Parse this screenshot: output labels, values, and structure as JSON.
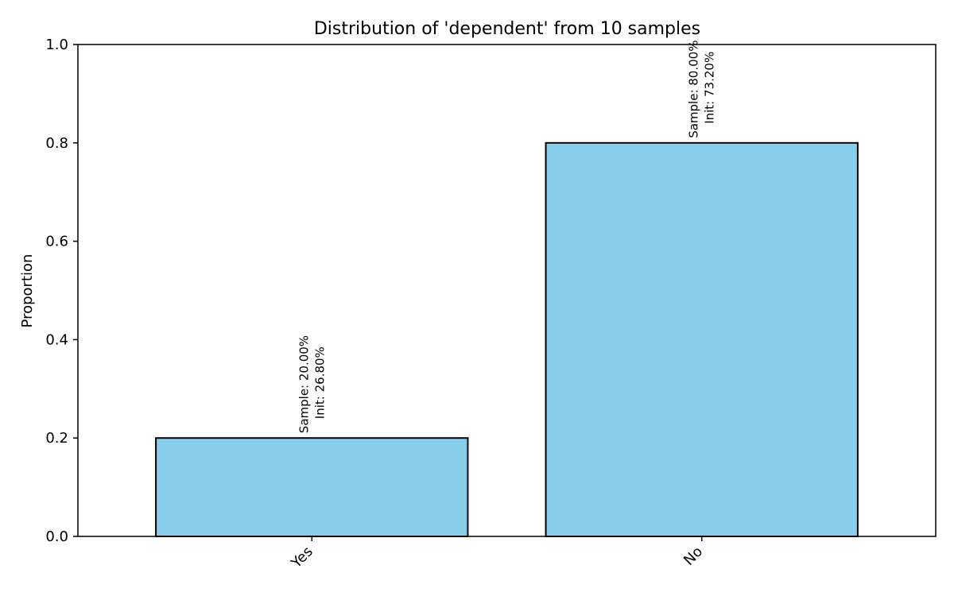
{
  "chart_data": {
    "type": "bar",
    "title": "Distribution of 'dependent' from 10 samples",
    "xlabel": "",
    "ylabel": "Proportion",
    "categories": [
      "Yes",
      "No"
    ],
    "values": [
      0.2,
      0.8
    ],
    "ylim": [
      0,
      1.0
    ],
    "yticks": [
      0.0,
      0.2,
      0.4,
      0.6,
      0.8,
      1.0
    ],
    "ytick_labels": [
      "0.0",
      "0.2",
      "0.4",
      "0.6",
      "0.8",
      "1.0"
    ],
    "annotations": [
      {
        "line1": "Sample: 20.00%",
        "line2": "Init: 26.80%"
      },
      {
        "line1": "Sample: 80.00%",
        "line2": "Init: 73.20%"
      }
    ],
    "bar_color": "#87ceeb",
    "edge_color": "#000000",
    "grid": false
  }
}
